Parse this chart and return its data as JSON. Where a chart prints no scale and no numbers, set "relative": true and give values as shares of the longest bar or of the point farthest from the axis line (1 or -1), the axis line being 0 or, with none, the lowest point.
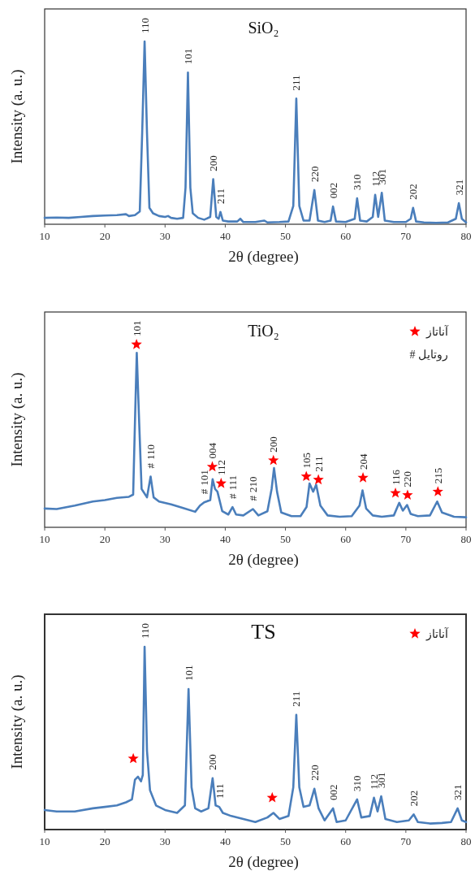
{
  "chart_data": [
    {
      "type": "line",
      "title": "SiO₂",
      "xlabel": "2θ (degree)",
      "ylabel": "Intensity (a. u.)",
      "relative": true,
      "xlim": [
        10,
        80
      ],
      "xticks": [
        10,
        20,
        30,
        40,
        50,
        60,
        70,
        80
      ],
      "tick_labels": "x",
      "legend": false,
      "series": [
        {
          "color": "#4a7ebb",
          "x": [
            10,
            12,
            14,
            16,
            18,
            20,
            22,
            23.5,
            24,
            25,
            25.8,
            26.2,
            26.6,
            27.0,
            27.4,
            28,
            29,
            30,
            30.5,
            31,
            32,
            33,
            33.4,
            33.8,
            34.2,
            34.6,
            35.5,
            36.5,
            37.5,
            38.0,
            38.5,
            38.9,
            39.2,
            39.6,
            40.5,
            42,
            42.5,
            43,
            45,
            46.5,
            47,
            49,
            50.5,
            51.3,
            51.8,
            52.3,
            53,
            54,
            54.8,
            55.4,
            56.5,
            57.5,
            57.9,
            58.4,
            60,
            61.5,
            61.9,
            62.4,
            63.5,
            64.5,
            64.9,
            65.4,
            66.0,
            66.5,
            68,
            70,
            70.8,
            71.2,
            71.7,
            73,
            75,
            77,
            78.3,
            78.8,
            79.3,
            80
          ],
          "values": [
            0.035,
            0.037,
            0.035,
            0.04,
            0.045,
            0.048,
            0.05,
            0.055,
            0.045,
            0.05,
            0.07,
            0.5,
            1.0,
            0.5,
            0.09,
            0.06,
            0.045,
            0.04,
            0.045,
            0.035,
            0.03,
            0.035,
            0.2,
            0.83,
            0.2,
            0.06,
            0.035,
            0.025,
            0.04,
            0.246,
            0.04,
            0.03,
            0.067,
            0.02,
            0.015,
            0.015,
            0.03,
            0.012,
            0.012,
            0.02,
            0.01,
            0.012,
            0.015,
            0.1,
            0.687,
            0.1,
            0.02,
            0.02,
            0.187,
            0.02,
            0.012,
            0.02,
            0.097,
            0.015,
            0.012,
            0.03,
            0.142,
            0.02,
            0.015,
            0.04,
            0.161,
            0.04,
            0.172,
            0.02,
            0.012,
            0.012,
            0.03,
            0.09,
            0.015,
            0.01,
            0.008,
            0.01,
            0.03,
            0.115,
            0.03,
            0.01
          ]
        }
      ],
      "annotations": [
        {
          "text": "110",
          "x": 26.6,
          "y": 1.0
        },
        {
          "text": "101",
          "x": 33.8,
          "y": 0.83
        },
        {
          "text": "200",
          "x": 38.0,
          "y": 0.246
        },
        {
          "text": "211",
          "x": 39.2,
          "y": 0.067
        },
        {
          "text": "211",
          "x": 51.8,
          "y": 0.687
        },
        {
          "text": "220",
          "x": 54.8,
          "y": 0.187
        },
        {
          "text": "002",
          "x": 57.9,
          "y": 0.097
        },
        {
          "text": "310",
          "x": 61.9,
          "y": 0.142
        },
        {
          "text": "112",
          "x": 64.9,
          "y": 0.161
        },
        {
          "text": "301",
          "x": 66.0,
          "y": 0.172
        },
        {
          "text": "202",
          "x": 71.2,
          "y": 0.09
        },
        {
          "text": "321",
          "x": 78.8,
          "y": 0.115
        }
      ]
    },
    {
      "type": "line",
      "title": "TiO₂",
      "xlabel": "2θ (degree)",
      "ylabel": "Intensity (a. u.)",
      "relative": true,
      "xlim": [
        10,
        80
      ],
      "xticks": [
        10,
        20,
        30,
        40,
        50,
        60,
        70,
        80
      ],
      "tick_labels": "x",
      "legend": "top right",
      "series": [
        {
          "color": "#4a7ebb",
          "x": [
            10,
            12,
            15,
            18,
            20,
            22,
            24,
            24.7,
            25.0,
            25.3,
            25.7,
            26.1,
            27,
            27.6,
            28.1,
            29,
            31,
            33,
            35,
            35.8,
            36.5,
            37.5,
            37.9,
            38.3,
            38.7,
            39.5,
            40.5,
            41.2,
            41.8,
            43,
            44.6,
            45.5,
            47,
            47.7,
            48.1,
            48.6,
            49.3,
            51,
            52.5,
            53.5,
            54,
            54.6,
            55.1,
            55.8,
            57,
            59,
            61,
            62.3,
            62.8,
            63.4,
            64.5,
            66,
            68,
            68.9,
            69.5,
            70.2,
            70.8,
            72,
            74,
            75.2,
            76,
            78,
            80
          ],
          "values": [
            0.103,
            0.1,
            0.119,
            0.141,
            0.149,
            0.161,
            0.167,
            0.179,
            0.574,
            0.954,
            0.574,
            0.21,
            0.164,
            0.278,
            0.164,
            0.141,
            0.126,
            0.106,
            0.085,
            0.119,
            0.137,
            0.149,
            0.263,
            0.21,
            0.195,
            0.088,
            0.07,
            0.111,
            0.07,
            0.065,
            0.1,
            0.065,
            0.088,
            0.21,
            0.324,
            0.195,
            0.081,
            0.061,
            0.061,
            0.111,
            0.24,
            0.195,
            0.233,
            0.119,
            0.065,
            0.058,
            0.061,
            0.119,
            0.202,
            0.103,
            0.065,
            0.058,
            0.065,
            0.134,
            0.091,
            0.122,
            0.073,
            0.061,
            0.065,
            0.141,
            0.081,
            0.058,
            0.055
          ]
        },
        {
          "type": "scatter",
          "name": "آناتاز",
          "color": "#ff0000",
          "marker": "star",
          "x": [
            25.26,
            37.85,
            39.31,
            48.0,
            53.46,
            55.47,
            62.88,
            68.27,
            70.28,
            75.32
          ],
          "values": [
            1.0,
            0.331,
            0.24,
            0.366,
            0.278,
            0.26,
            0.271,
            0.187,
            0.176,
            0.195
          ]
        }
      ],
      "annotations": [
        "# روتایل",
        {
          "text": "#",
          "x": 27.6,
          "y": 0.278
        },
        {
          "text": "110",
          "x": 27.6,
          "y": 0.278
        },
        {
          "text": "#",
          "x": 36.5,
          "y": 0.137
        },
        {
          "text": "101",
          "x": 36.5,
          "y": 0.137
        },
        {
          "text": "#",
          "x": 41.2,
          "y": 0.111
        },
        {
          "text": "111",
          "x": 41.2,
          "y": 0.111
        },
        {
          "text": "#",
          "x": 44.6,
          "y": 0.1
        },
        {
          "text": "210",
          "x": 44.6,
          "y": 0.1
        },
        {
          "text": "101",
          "x": 25.26,
          "y": 1.0
        },
        {
          "text": "004",
          "x": 37.85,
          "y": 0.331
        },
        {
          "text": "112",
          "x": 39.31,
          "y": 0.24
        },
        {
          "text": "200",
          "x": 48.0,
          "y": 0.366
        },
        {
          "text": "105",
          "x": 53.46,
          "y": 0.278
        },
        {
          "text": "211",
          "x": 55.47,
          "y": 0.26
        },
        {
          "text": "204",
          "x": 62.88,
          "y": 0.271
        },
        {
          "text": "116",
          "x": 68.27,
          "y": 0.187
        },
        {
          "text": "220",
          "x": 70.28,
          "y": 0.176
        },
        {
          "text": "215",
          "x": 75.32,
          "y": 0.195
        }
      ]
    },
    {
      "type": "line",
      "title": "TS",
      "xlabel": "2θ (degree)",
      "ylabel": "Intensity (a. u.)",
      "relative": true,
      "xlim": [
        10,
        80
      ],
      "xticks": [
        10,
        20,
        30,
        40,
        50,
        60,
        70,
        80
      ],
      "tick_labels": "x",
      "legend": "top right",
      "series": [
        {
          "color": "#4a7ebb",
          "x": [
            10,
            12,
            15,
            18,
            20,
            22,
            23.5,
            24.5,
            25.0,
            25.5,
            26.0,
            26.3,
            26.6,
            27.0,
            27.5,
            28.5,
            30,
            32,
            33.3,
            33.9,
            34.4,
            35,
            36,
            37.2,
            37.9,
            38.4,
            39.0,
            39.6,
            41,
            43,
            45,
            47,
            48,
            49,
            50.5,
            51.3,
            51.8,
            52.3,
            53,
            54,
            54.8,
            55.5,
            56.5,
            57.9,
            58.5,
            60,
            61.9,
            62.6,
            64,
            64.7,
            65.3,
            65.9,
            66.6,
            68.5,
            70.5,
            71.3,
            72,
            74,
            76,
            77.5,
            78.6,
            79.3,
            80
          ],
          "values": [
            0.107,
            0.099,
            0.099,
            0.116,
            0.124,
            0.132,
            0.149,
            0.165,
            0.273,
            0.289,
            0.264,
            0.298,
            1.0,
            0.43,
            0.215,
            0.132,
            0.107,
            0.091,
            0.132,
            0.769,
            0.231,
            0.116,
            0.099,
            0.116,
            0.281,
            0.132,
            0.124,
            0.091,
            0.074,
            0.058,
            0.041,
            0.066,
            0.091,
            0.058,
            0.074,
            0.231,
            0.628,
            0.231,
            0.124,
            0.132,
            0.223,
            0.116,
            0.05,
            0.116,
            0.041,
            0.05,
            0.165,
            0.066,
            0.074,
            0.174,
            0.099,
            0.182,
            0.058,
            0.041,
            0.05,
            0.083,
            0.041,
            0.033,
            0.036,
            0.041,
            0.116,
            0.05,
            0.041
          ]
        },
        {
          "type": "scatter",
          "name": "آناتاز",
          "color": "#ff0000",
          "marker": "star",
          "x": [
            24.72,
            47.8
          ],
          "values": [
            0.388,
            0.174
          ]
        }
      ],
      "annotations": [
        {
          "text": "110",
          "x": 26.6,
          "y": 1.0
        },
        {
          "text": "101",
          "x": 33.9,
          "y": 0.769
        },
        {
          "text": "200",
          "x": 37.9,
          "y": 0.281
        },
        {
          "text": "111",
          "x": 39.0,
          "y": 0.124
        },
        {
          "text": "211",
          "x": 51.8,
          "y": 0.628
        },
        {
          "text": "220",
          "x": 54.8,
          "y": 0.223
        },
        {
          "text": "002",
          "x": 57.9,
          "y": 0.116
        },
        {
          "text": "310",
          "x": 61.9,
          "y": 0.165
        },
        {
          "text": "112",
          "x": 64.7,
          "y": 0.174
        },
        {
          "text": "301",
          "x": 65.9,
          "y": 0.182
        },
        {
          "text": "202",
          "x": 71.3,
          "y": 0.083
        },
        {
          "text": "321",
          "x": 78.6,
          "y": 0.116
        }
      ]
    }
  ]
}
